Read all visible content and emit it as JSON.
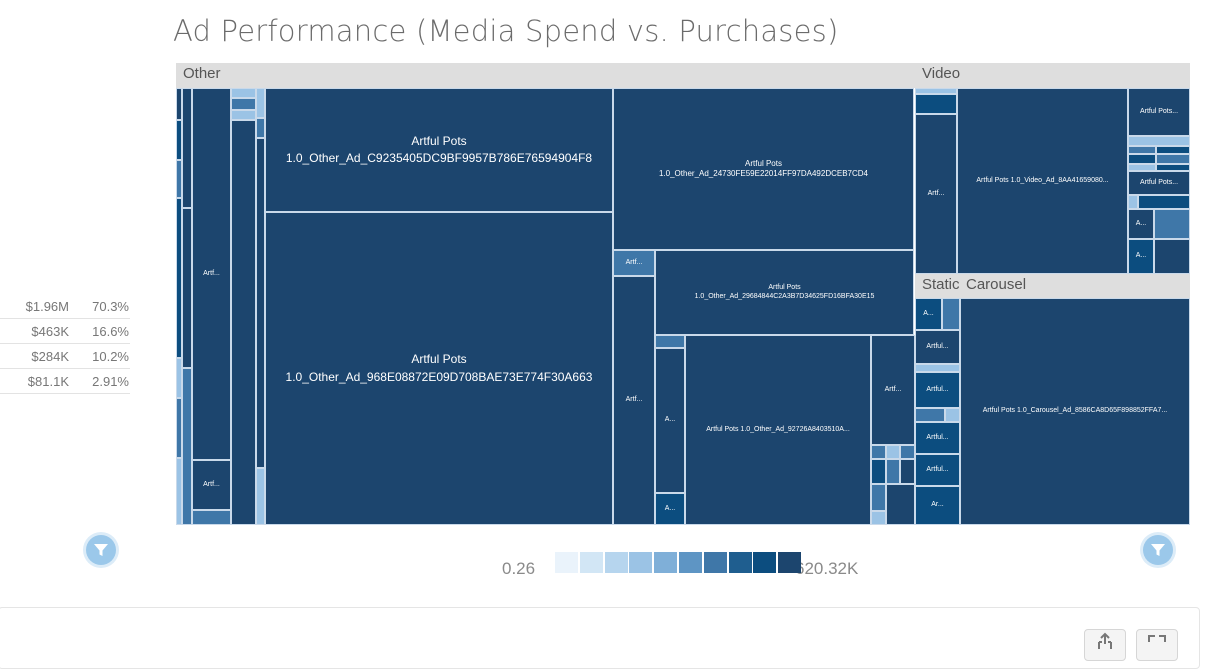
{
  "page": {
    "title": "Ad Performance (Media Spend vs. Purchases)"
  },
  "summary_table": [
    {
      "value": "$1.96M",
      "percent": "70.3%"
    },
    {
      "value": "$463K",
      "percent": "16.6%"
    },
    {
      "value": "$284K",
      "percent": "10.2%"
    },
    {
      "value": "$81.1K",
      "percent": "2.91%"
    }
  ],
  "chart_data": {
    "type": "treemap",
    "title": "Ad Performance (Media Spend vs. Purchases)",
    "groups": [
      "Other",
      "Video",
      "Static",
      "Carousel"
    ],
    "color_scale": {
      "min_label": "0.26",
      "max_label": "620.32K",
      "colors": [
        "#eaf3fb",
        "#d2e6f5",
        "#b6d5ee",
        "#9bc3e5",
        "#7fafd8",
        "#5e95c4",
        "#3f77a8",
        "#1f5e8f",
        "#0c4d7f",
        "#1c456e"
      ]
    },
    "leaves": [
      {
        "group": "Other",
        "label": "Artful Pots\n1.0_Other_Ad_C9235405DC9BF9957B786E76594904F8"
      },
      {
        "group": "Other",
        "label": "Artful Pots\n1.0_Other_Ad_968E08872E09D708BAE73E774F30A663"
      },
      {
        "group": "Other",
        "label": "Artful Pots\n1.0_Other_Ad_24730FE59E22014FF97DA492DCEB7CD4"
      },
      {
        "group": "Other",
        "label": "Artful Pots\n1.0_Other_Ad_29684844C2A3B7D34625FD16BFA30E15"
      },
      {
        "group": "Other",
        "label": "Artful Pots 1.0_Other_Ad_92726A8403510A..."
      },
      {
        "group": "Video",
        "label": "Artful Pots 1.0_Video_Ad_8AA41659080..."
      },
      {
        "group": "Carousel",
        "label": "Artful Pots 1.0_Carousel_Ad_8586CA8D65F898852FFA7..."
      },
      {
        "group": "Other",
        "label": "Artf..."
      },
      {
        "group": "Video",
        "label": "Artful Pots..."
      },
      {
        "group": "Video",
        "label": "A..."
      },
      {
        "group": "Static",
        "label": "Artful..."
      },
      {
        "group": "Static",
        "label": "Ar..."
      }
    ]
  }
}
